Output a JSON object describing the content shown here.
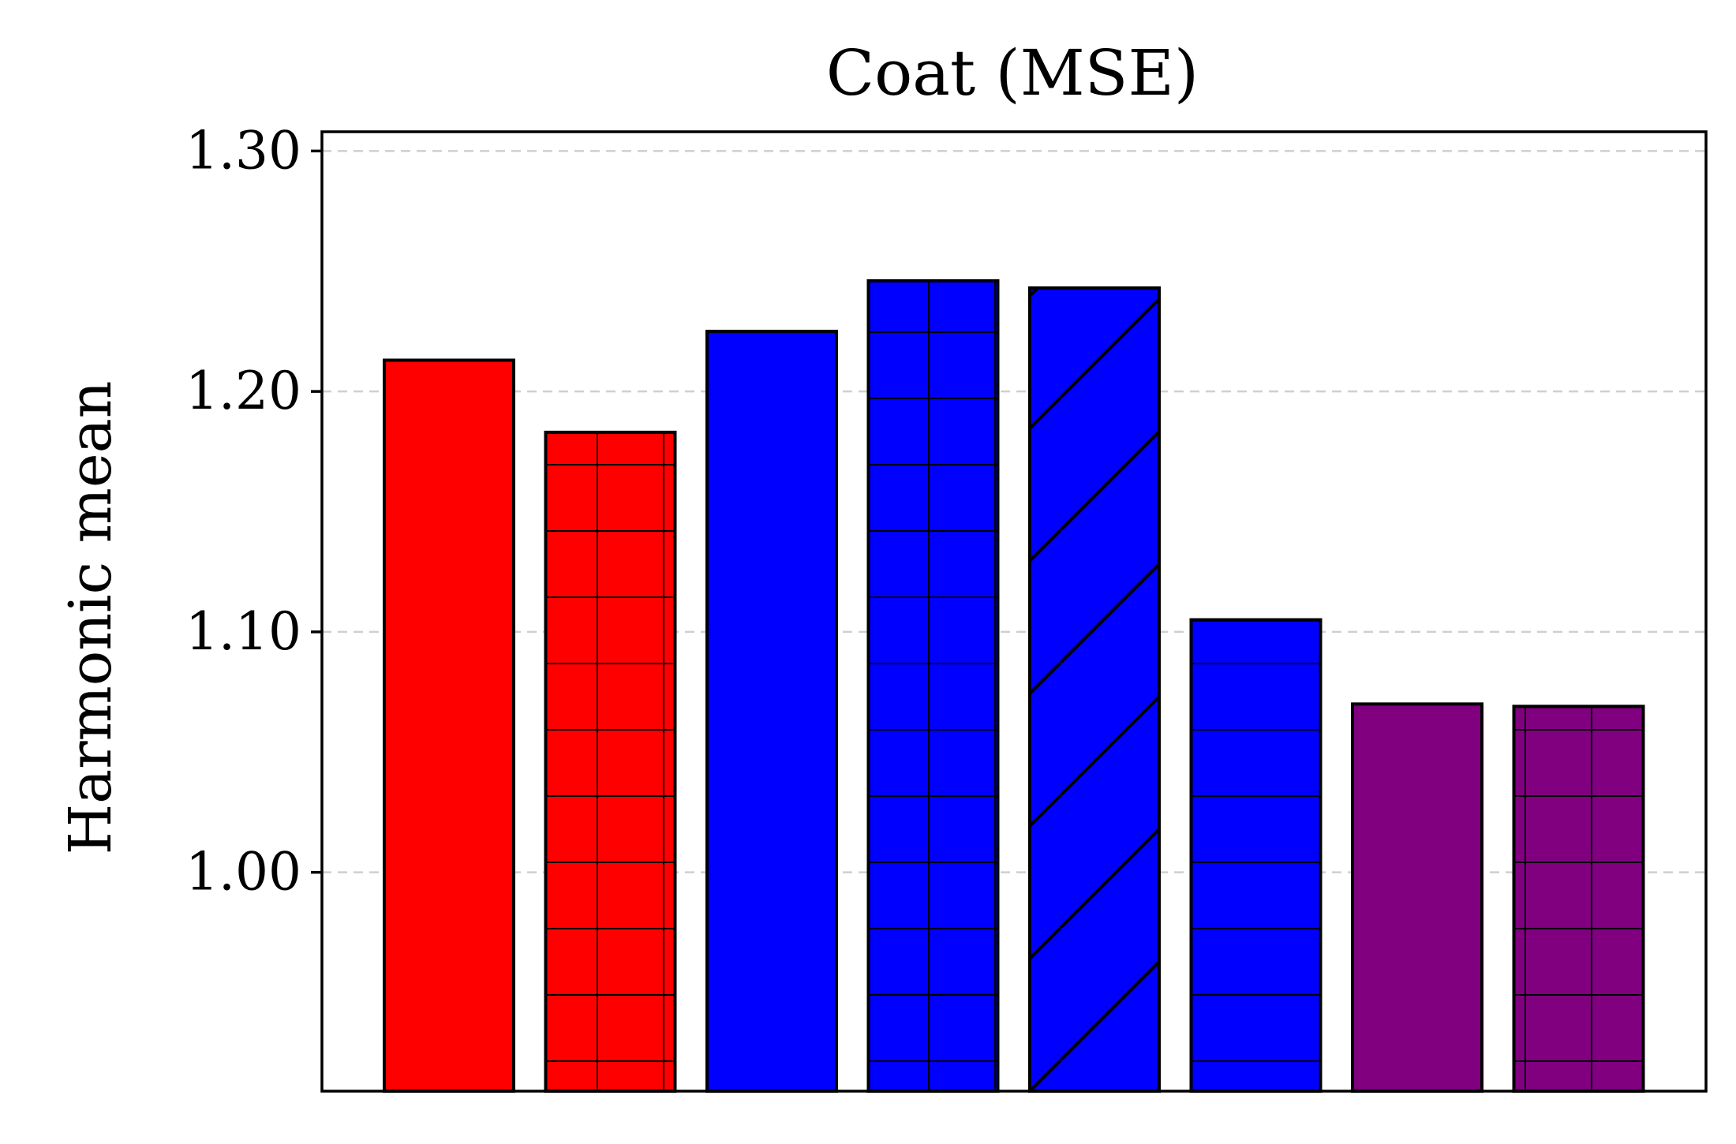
{
  "chart_data": {
    "type": "bar",
    "title": "Coat (MSE)",
    "xlabel": "",
    "ylabel": "Harmonic mean",
    "ylim": [
      0.909,
      1.308
    ],
    "yticks": [
      1.0,
      1.1,
      1.2,
      1.3
    ],
    "ytick_labels": [
      "1.00",
      "1.10",
      "1.20",
      "1.30"
    ],
    "grid": "y-dashed",
    "bars": [
      {
        "value": 1.213,
        "color": "#ff0000",
        "hatch": "none"
      },
      {
        "value": 1.183,
        "color": "#ff0000",
        "hatch": "grid"
      },
      {
        "value": 1.225,
        "color": "#0000ff",
        "hatch": "none"
      },
      {
        "value": 1.246,
        "color": "#0000ff",
        "hatch": "grid"
      },
      {
        "value": 1.243,
        "color": "#0000ff",
        "hatch": "diagonal"
      },
      {
        "value": 1.105,
        "color": "#0000ff",
        "hatch": "horizontal"
      },
      {
        "value": 1.07,
        "color": "#800080",
        "hatch": "none"
      },
      {
        "value": 1.069,
        "color": "#800080",
        "hatch": "grid"
      }
    ]
  }
}
